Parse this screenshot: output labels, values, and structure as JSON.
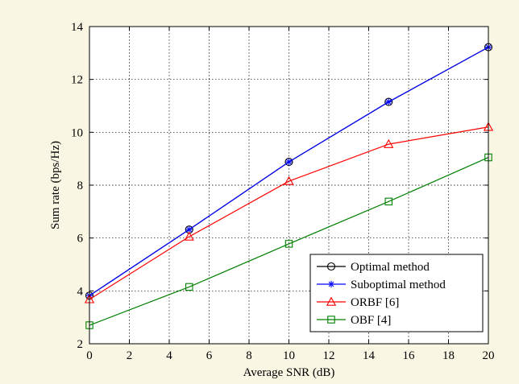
{
  "colors": {
    "background": "#f9f6e3",
    "plot_background": "#ffffff",
    "grid": "#000000"
  },
  "chart_data": {
    "type": "line",
    "title": "",
    "xlabel": "Average SNR (dB)",
    "ylabel": "Sum rate (bps/Hz)",
    "xlim": [
      0,
      20
    ],
    "ylim": [
      2,
      14
    ],
    "xticks": [
      0,
      2,
      4,
      6,
      8,
      10,
      12,
      14,
      16,
      18,
      20
    ],
    "yticks": [
      2,
      4,
      6,
      8,
      10,
      12,
      14
    ],
    "grid": true,
    "legend_position": "bottom-right",
    "series": [
      {
        "name": "Optimal method",
        "color": "#000000",
        "marker": "circle",
        "x": [
          0,
          5,
          10,
          15,
          20
        ],
        "y": [
          3.82,
          6.32,
          8.88,
          11.15,
          13.22
        ]
      },
      {
        "name": "Suboptimal method",
        "color": "#0000ff",
        "marker": "star",
        "x": [
          0,
          5,
          10,
          15,
          20
        ],
        "y": [
          3.82,
          6.32,
          8.88,
          11.15,
          13.22
        ]
      },
      {
        "name": "ORBF [6]",
        "color": "#ff0000",
        "marker": "triangle",
        "x": [
          0,
          5,
          10,
          15,
          20
        ],
        "y": [
          3.68,
          6.05,
          8.15,
          9.55,
          10.2
        ]
      },
      {
        "name": "OBF [4]",
        "color": "#008000",
        "marker": "square",
        "x": [
          0,
          5,
          10,
          15,
          20
        ],
        "y": [
          2.7,
          4.15,
          5.78,
          7.38,
          9.05
        ]
      }
    ]
  }
}
